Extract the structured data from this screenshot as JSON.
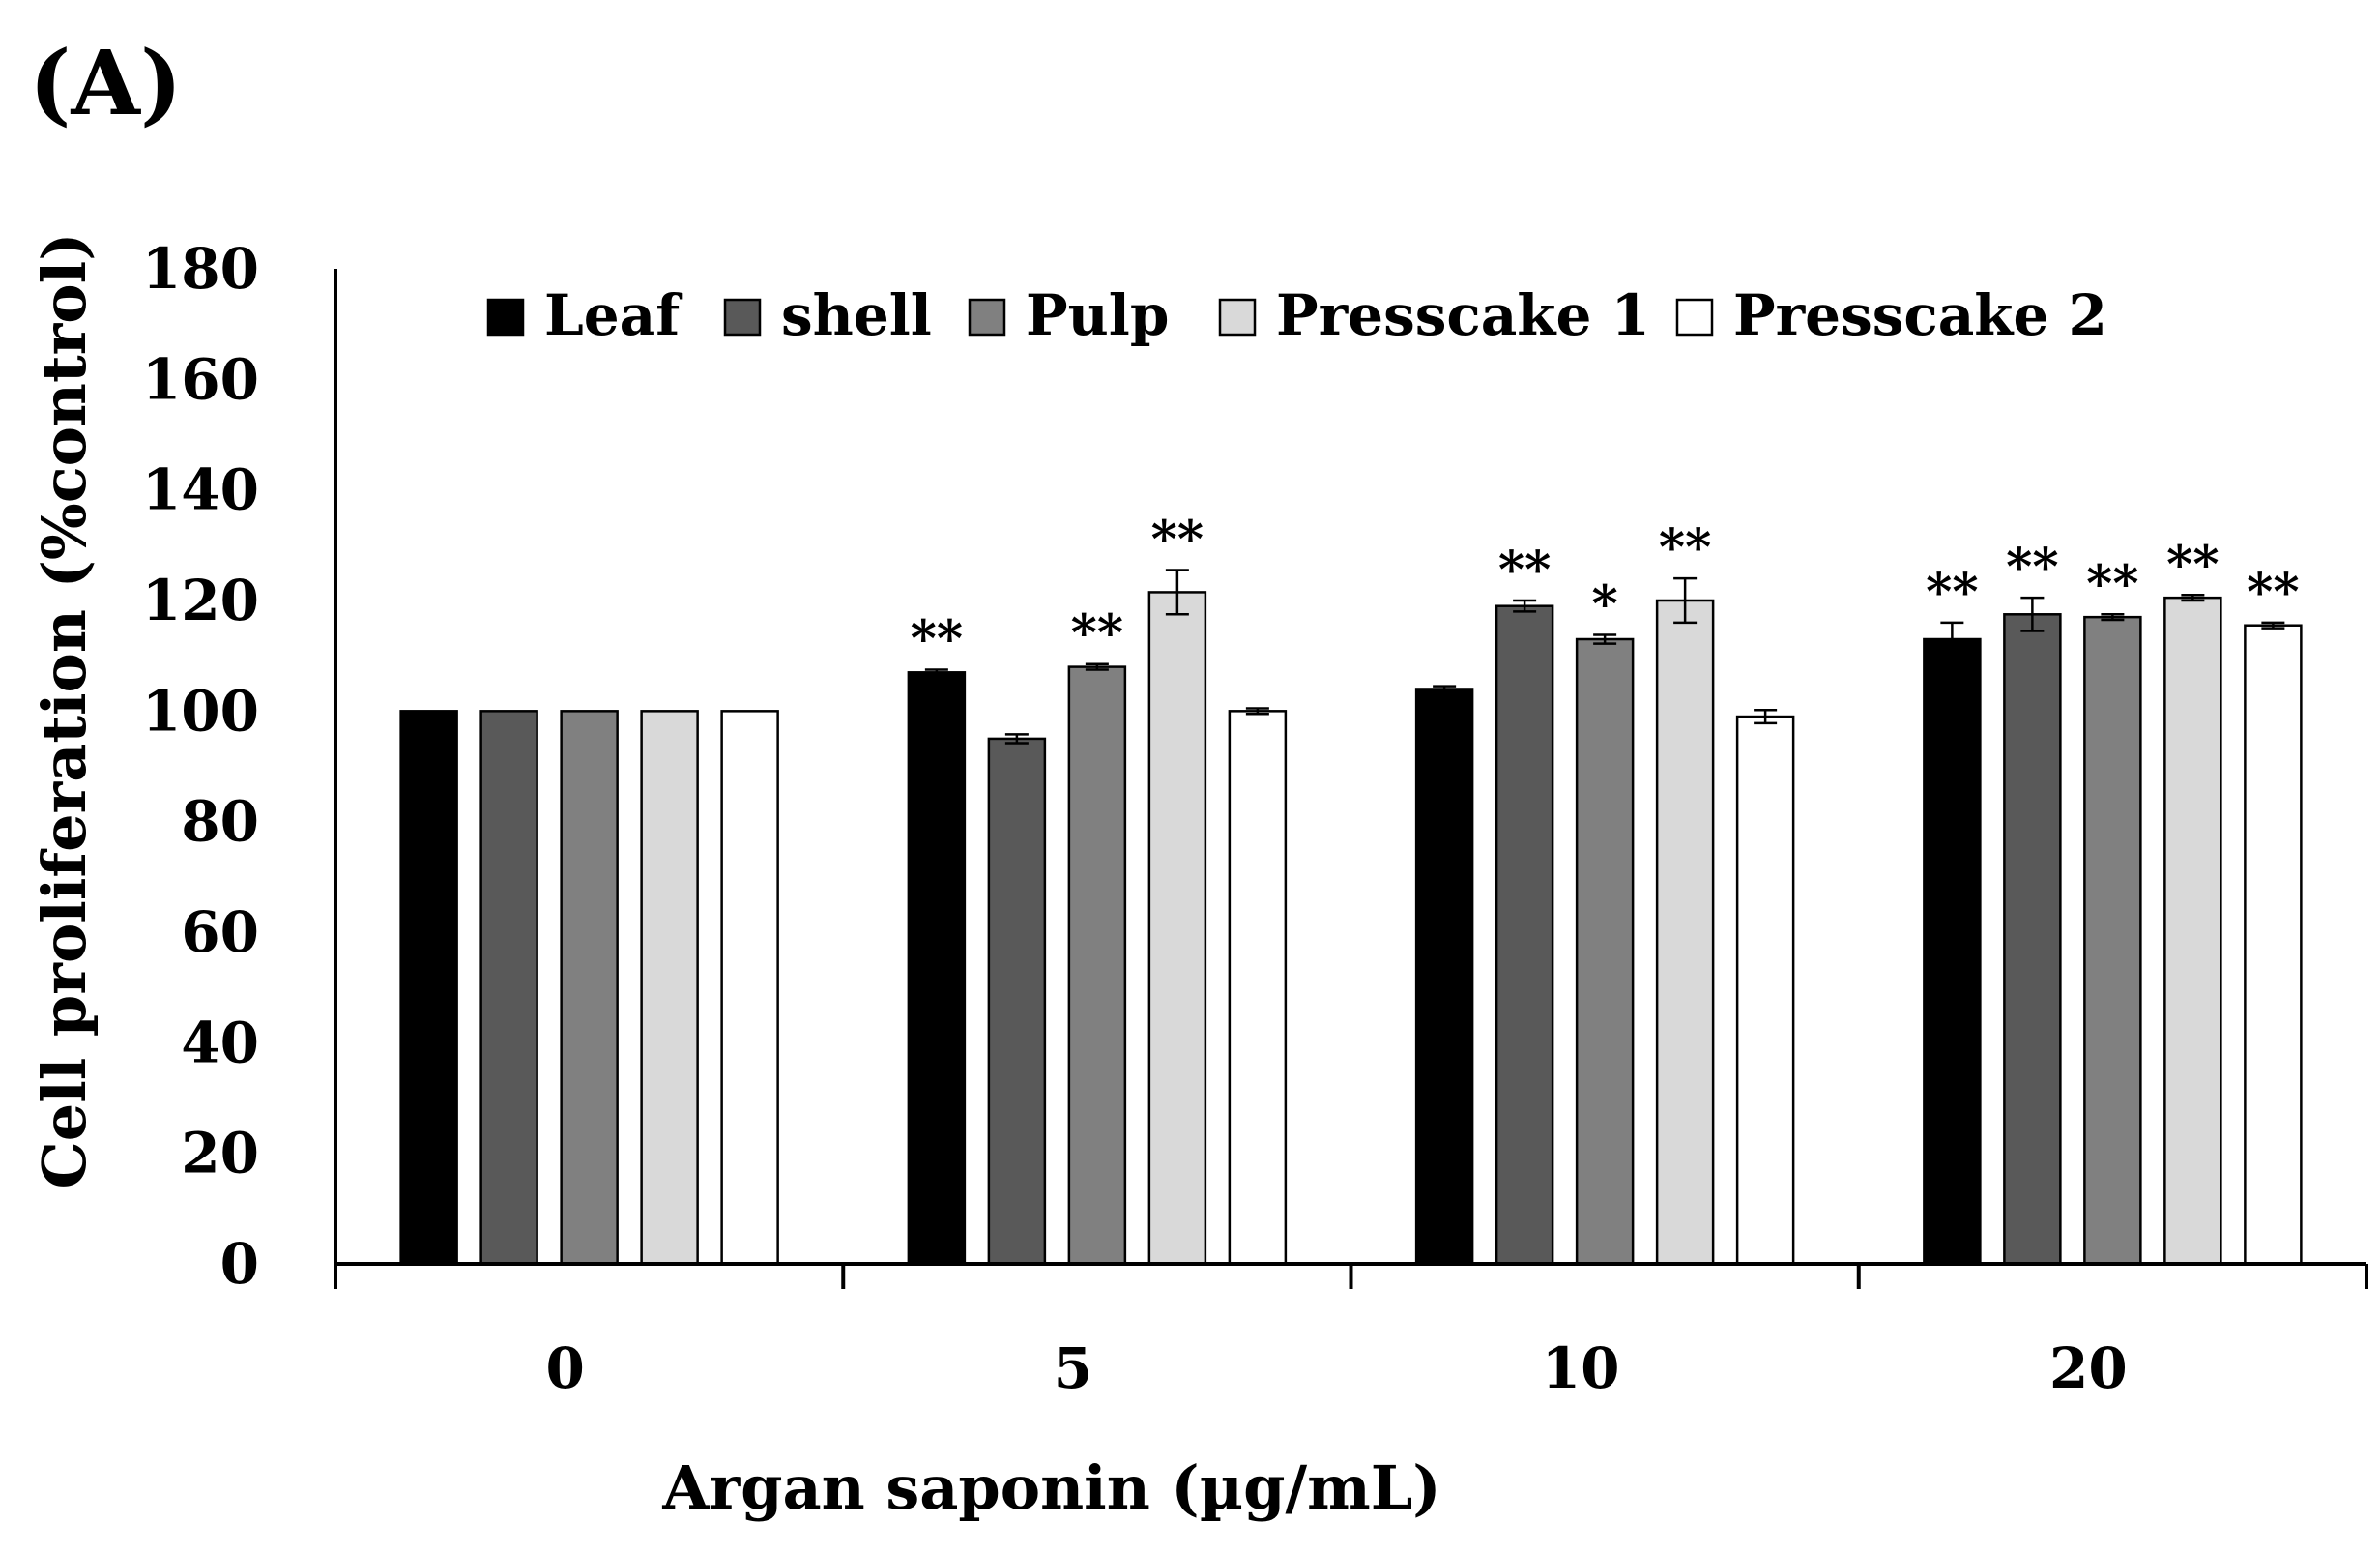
{
  "panel_label": "(A)",
  "chart_data": {
    "type": "bar",
    "title": "",
    "xlabel": "Argan saponin (µg/mL)",
    "ylabel": "Cell proliferation (%control)",
    "categories": [
      "0",
      "5",
      "10",
      "20"
    ],
    "ylim": [
      0,
      180
    ],
    "yticks": [
      "0",
      "20",
      "40",
      "60",
      "80",
      "100",
      "120",
      "140",
      "160",
      "180"
    ],
    "grid": false,
    "legend_position": "top",
    "series": [
      {
        "name": "Leaf",
        "color": "#000000",
        "values": [
          100,
          107,
          104,
          113
        ],
        "errors": [
          0,
          0.5,
          0.5,
          3
        ],
        "sig": [
          "",
          "**",
          "",
          "**"
        ]
      },
      {
        "name": "shell",
        "color": "#595959",
        "values": [
          100,
          95,
          119,
          117.5
        ],
        "errors": [
          0,
          0.8,
          1,
          3
        ],
        "sig": [
          "",
          "",
          "**",
          "**"
        ]
      },
      {
        "name": "Pulp",
        "color": "#808080",
        "values": [
          100,
          108,
          113,
          117
        ],
        "errors": [
          0,
          0.5,
          0.8,
          0.5
        ],
        "sig": [
          "",
          "**",
          "*",
          "**"
        ]
      },
      {
        "name": "Presscake 1",
        "color": "#d9d9d9",
        "values": [
          100,
          121.5,
          120,
          120.5
        ],
        "errors": [
          0,
          4,
          4,
          0.5
        ],
        "sig": [
          "",
          "**",
          "**",
          "**"
        ]
      },
      {
        "name": "Presscake 2",
        "color": "#ffffff",
        "values": [
          100,
          100,
          99,
          115.5
        ],
        "errors": [
          0,
          0.5,
          1.2,
          0.5
        ],
        "sig": [
          "",
          "",
          "",
          "**"
        ]
      }
    ]
  }
}
